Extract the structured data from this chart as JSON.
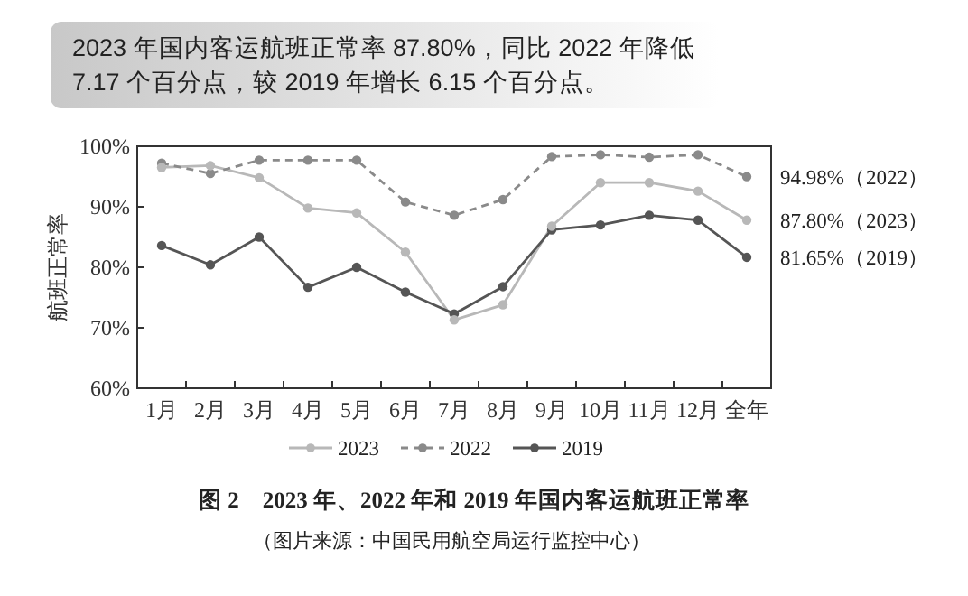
{
  "chart_data": {
    "type": "line",
    "title": "2023 年国内客运航班正常率 87.80%，同比 2022 年降低\n7.17 个百分点，较 2019 年增长 6.15 个百分点。",
    "ylabel": "航班正常率",
    "categories": [
      "1月",
      "2月",
      "3月",
      "4月",
      "5月",
      "6月",
      "7月",
      "8月",
      "9月",
      "10月",
      "11月",
      "12月",
      "全年"
    ],
    "series": [
      {
        "name": "2023",
        "color": "#b8b8b8",
        "line_style": "solid",
        "values": [
          96.5,
          96.8,
          94.8,
          89.8,
          89,
          82.5,
          71.3,
          73.8,
          86.8,
          94,
          94,
          92.6,
          87.8
        ]
      },
      {
        "name": "2022",
        "color": "#8a8a8a",
        "line_style": "dashed",
        "values": [
          97.2,
          95.5,
          97.7,
          97.7,
          97.7,
          90.8,
          88.6,
          91.2,
          98.3,
          98.6,
          98.2,
          98.6,
          94.98
        ]
      },
      {
        "name": "2019",
        "color": "#555555",
        "line_style": "solid",
        "values": [
          83.6,
          80.4,
          85,
          76.7,
          80,
          75.9,
          72.3,
          76.8,
          86.2,
          87,
          88.6,
          87.8,
          81.65
        ]
      }
    ],
    "ylim": [
      60,
      100
    ],
    "yticks": [
      {
        "value": 60,
        "label": "60%"
      },
      {
        "value": 70,
        "label": "70%"
      },
      {
        "value": 80,
        "label": "80%"
      },
      {
        "value": 90,
        "label": "90%"
      },
      {
        "value": 100,
        "label": "100%"
      }
    ],
    "grid": false,
    "legend": "bottom",
    "marker": "circle",
    "annotations": [
      {
        "text": "94.98%（2022）",
        "x": "全年",
        "y": 94.98
      },
      {
        "text": "87.80%（2023）",
        "x": "全年",
        "y": 87.8
      },
      {
        "text": "81.65%（2019）",
        "x": "全年",
        "y": 81.65
      },
      "图 2　2023 年、2022 年和 2019 年国内客运航班正常率",
      "（图片来源：中国民用航空局运行监控中心）"
    ]
  }
}
